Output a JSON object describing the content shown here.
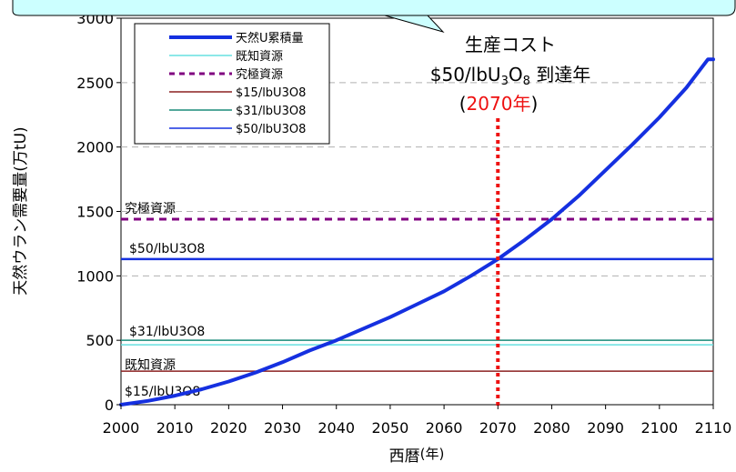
{
  "chart_data": {
    "type": "line",
    "xlabel": "西暦",
    "xlabel_unit": "(年)",
    "ylabel": "天然ウラン需要量(万tU)",
    "xlim": [
      2000,
      2110
    ],
    "ylim": [
      0,
      3000
    ],
    "x_ticks": [
      "2000",
      "2010",
      "2020",
      "2030",
      "2040",
      "2050",
      "2060",
      "2070",
      "2080",
      "2090",
      "2100",
      "2110"
    ],
    "y_ticks": [
      "0",
      "500",
      "1000",
      "1500",
      "2000",
      "2500",
      "3000"
    ],
    "grid": "horizontal-dashed",
    "legend_position": "top-left",
    "legend": [
      {
        "label": "天然U累積量",
        "color": "#1530e0",
        "style": "solid-thick"
      },
      {
        "label": "既知資源",
        "color": "#66e0e0",
        "style": "solid"
      },
      {
        "label": "究極資源",
        "color": "#800080",
        "style": "dashed"
      },
      {
        "label": "$15/lbU3O8",
        "color": "#8b2020",
        "style": "solid"
      },
      {
        "label": "$31/lbU3O8",
        "color": "#1a8c7a",
        "style": "solid"
      },
      {
        "label": "$50/lbU3O8",
        "color": "#1530e0",
        "style": "solid"
      }
    ],
    "series": [
      {
        "name": "天然U累積量",
        "color": "#1530e0",
        "x": [
          2000,
          2005,
          2010,
          2015,
          2020,
          2025,
          2030,
          2035,
          2040,
          2045,
          2050,
          2055,
          2060,
          2065,
          2070,
          2075,
          2080,
          2085,
          2090,
          2095,
          2100,
          2105,
          2109,
          2110
        ],
        "y": [
          0,
          30,
          70,
          120,
          180,
          250,
          330,
          420,
          500,
          590,
          680,
          780,
          880,
          1000,
          1130,
          1280,
          1440,
          1620,
          1820,
          2020,
          2230,
          2460,
          2680,
          2680
        ]
      }
    ],
    "reference_lines": [
      {
        "name": "既知資源",
        "label": "既知資源",
        "y": 465,
        "color": "#66e0e0",
        "style": "solid"
      },
      {
        "name": "究極資源",
        "label": "究極資源",
        "y": 1440,
        "color": "#800080",
        "style": "dashed"
      },
      {
        "name": "$15/lbU3O8",
        "label": "$15/lbU3O8",
        "y": 260,
        "color": "#8b2020",
        "style": "solid"
      },
      {
        "name": "$31/lbU3O8",
        "label": "$31/lbU3O8",
        "y": 500,
        "color": "#1a8c7a",
        "style": "solid"
      },
      {
        "name": "$50/lbU3O8",
        "label": "$50/lbU3O8",
        "y": 1130,
        "color": "#1530e0",
        "style": "solid"
      }
    ],
    "marker_line": {
      "x": 2070,
      "color": "#ee1111",
      "style": "dotted"
    },
    "annotation": {
      "line1": "生産コスト",
      "line2_pre": "$50/lbU",
      "line2_sub1": "3",
      "line2_mid": "O",
      "line2_sub2": "8",
      "line2_post": " 到達年",
      "line3_open": "(",
      "line3_year": "2070年",
      "line3_close": ")",
      "year_color": "#ee1111"
    }
  }
}
